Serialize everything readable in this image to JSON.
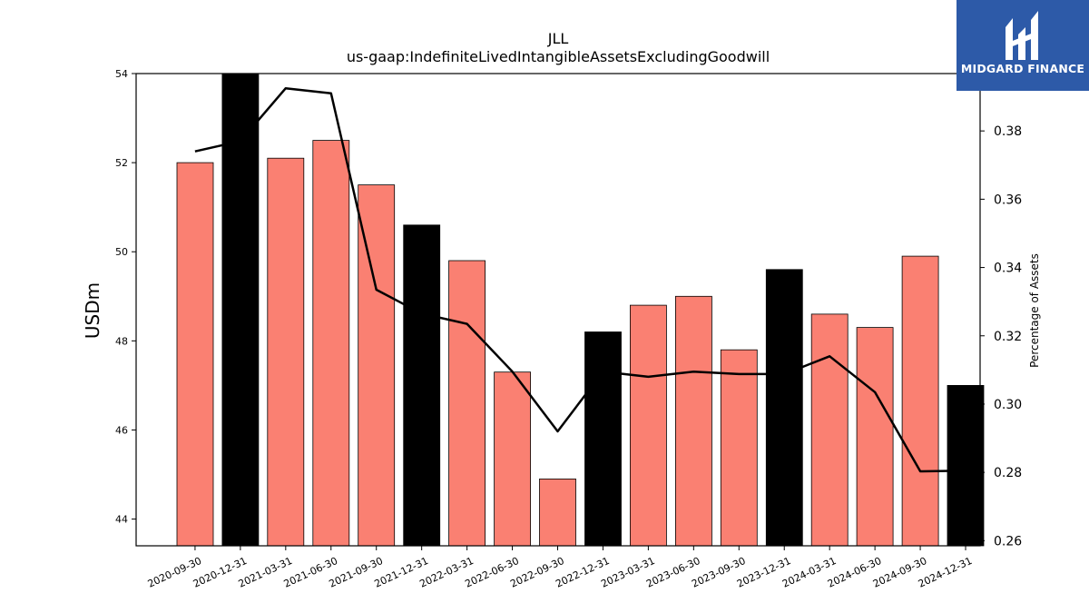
{
  "brand": {
    "name": "MIDGARD FINANCE",
    "bg_color": "#2d5aa8"
  },
  "chart_data": {
    "type": "bar",
    "title": "JLL",
    "subtitle": "us-gaap:IndefiniteLivedIntangibleAssetsExcludingGoodwill",
    "ylabel": "USDm",
    "y2label": "Percentage of Assets",
    "categories": [
      "2020-09-30",
      "2020-12-31",
      "2021-03-31",
      "2021-06-30",
      "2021-09-30",
      "2021-12-31",
      "2022-03-31",
      "2022-06-30",
      "2022-09-30",
      "2022-12-31",
      "2023-03-31",
      "2023-06-30",
      "2023-09-30",
      "2023-12-31",
      "2024-03-31",
      "2024-06-30",
      "2024-09-30",
      "2024-12-31"
    ],
    "series": [
      {
        "kind": "bar",
        "axis": "left",
        "values": [
          52.0,
          54.0,
          52.1,
          52.5,
          51.5,
          50.6,
          49.8,
          47.3,
          44.9,
          48.2,
          48.8,
          49.0,
          47.8,
          49.6,
          48.6,
          48.3,
          49.9,
          47.0
        ],
        "colors": [
          "#fa8072",
          "#000000",
          "#fa8072",
          "#fa8072",
          "#fa8072",
          "#000000",
          "#fa8072",
          "#fa8072",
          "#fa8072",
          "#000000",
          "#fa8072",
          "#fa8072",
          "#fa8072",
          "#000000",
          "#fa8072",
          "#fa8072",
          "#fa8072",
          "#000000"
        ]
      },
      {
        "kind": "line",
        "axis": "right",
        "color": "#000000",
        "values": [
          0.374,
          0.377,
          0.3925,
          0.391,
          0.3335,
          0.3265,
          0.3235,
          0.3095,
          0.292,
          0.3095,
          0.308,
          0.3095,
          0.3088,
          0.3088,
          0.314,
          0.3035,
          0.2803,
          0.2805
        ]
      }
    ],
    "ylim": [
      43.4,
      54.0
    ],
    "yticks": [
      44,
      46,
      48,
      50,
      52,
      54
    ],
    "y2lim": [
      0.2585,
      0.3968
    ],
    "y2ticks": [
      "0.26",
      "0.28",
      "0.30",
      "0.32",
      "0.34",
      "0.36",
      "0.38"
    ],
    "grid": false,
    "legend": "none"
  }
}
